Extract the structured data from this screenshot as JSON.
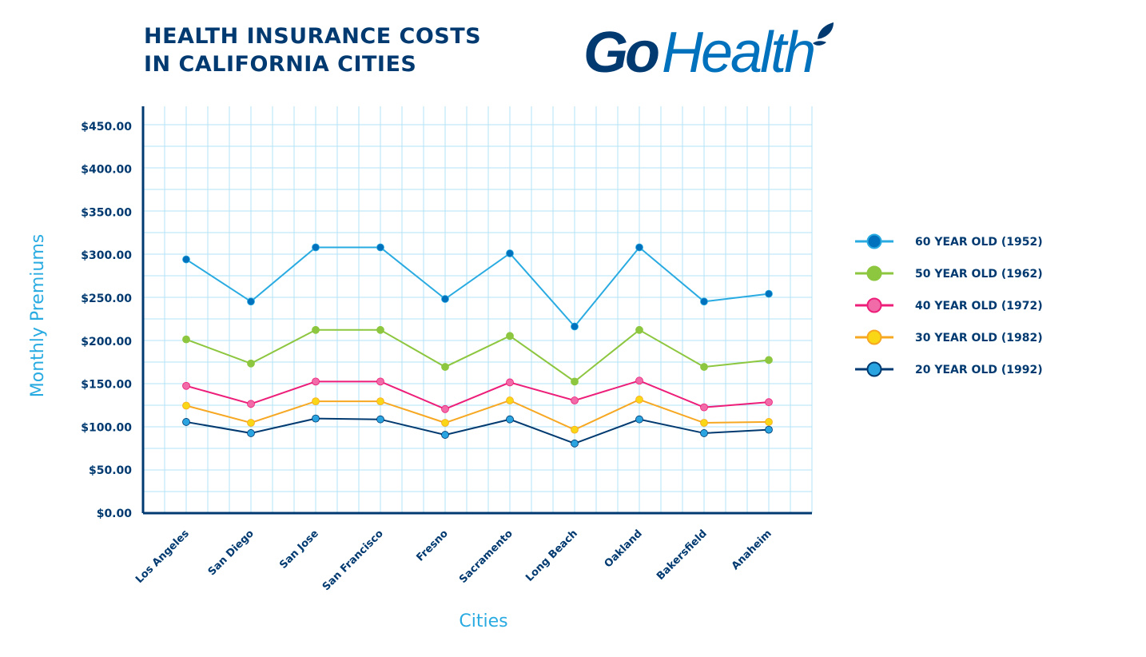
{
  "title_lines": [
    "HEALTH INSURANCE COSTS",
    "IN CALIFORNIA CITIES"
  ],
  "logo": {
    "part1": "Go",
    "part2": "Health",
    "colors": {
      "go": "#003a70",
      "health": "#0071bc"
    }
  },
  "chart_data": {
    "type": "line",
    "title": "HEALTH INSURANCE COSTS IN CALIFORNIA CITIES",
    "xlabel": "Cities",
    "ylabel": "Monthly Premiums",
    "ylim": [
      0,
      473
    ],
    "yticks": [
      0,
      50,
      100,
      150,
      200,
      250,
      300,
      350,
      400,
      450
    ],
    "ytick_labels": [
      "$0.00",
      "$50.00",
      "$100.00",
      "$150.00",
      "$200.00",
      "$250.00",
      "$300.00",
      "$350.00",
      "$400.00",
      "$450.00"
    ],
    "grid": true,
    "legend_position": "right",
    "categories": [
      "Los Angeles",
      "San Diego",
      "San Jose",
      "San Francisco",
      "Fresno",
      "Sacramento",
      "Long Beach",
      "Oakland",
      "Bakersfield",
      "Anaheim"
    ],
    "series": [
      {
        "name": "60 YEAR OLD (1952)",
        "line_color": "#29abe2",
        "marker_color": "#0071bc",
        "values": [
          295,
          246,
          309,
          309,
          249,
          302,
          217,
          309,
          246,
          255
        ]
      },
      {
        "name": "50 YEAR OLD (1962)",
        "line_color": "#8dc63f",
        "marker_color": "#8dc63f",
        "values": [
          202,
          174,
          213,
          213,
          170,
          206,
          153,
          213,
          170,
          178
        ]
      },
      {
        "name": "40 YEAR OLD (1972)",
        "line_color": "#ed1e79",
        "marker_color": "#f06ba8",
        "values": [
          148,
          127,
          153,
          153,
          121,
          152,
          131,
          154,
          123,
          129
        ]
      },
      {
        "name": "30 YEAR OLD (1982)",
        "line_color": "#f7a823",
        "marker_color": "#f9d616",
        "values": [
          125,
          105,
          130,
          130,
          105,
          131,
          97,
          132,
          105,
          106
        ]
      },
      {
        "name": "20 YEAR OLD (1992)",
        "line_color": "#003a70",
        "marker_color": "#29a4e0",
        "values": [
          106,
          93,
          110,
          109,
          91,
          109,
          81,
          109,
          93,
          97
        ]
      }
    ]
  }
}
